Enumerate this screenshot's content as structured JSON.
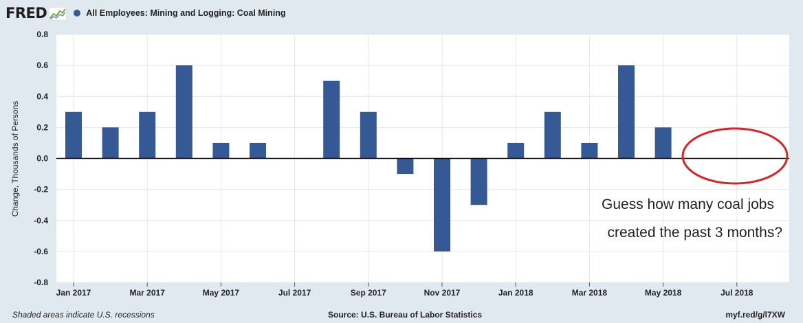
{
  "header": {
    "logo": "FRED",
    "series_title": "All Employees: Mining and Logging: Coal Mining"
  },
  "footer": {
    "note": "Shaded areas indicate U.S. recessions",
    "source": "Source: U.S. Bureau of Labor Statistics",
    "link": "myf.red/g/l7XW"
  },
  "annotation": {
    "line1": "Guess how many coal jobs",
    "line2": "created the past 3 months?"
  },
  "colors": {
    "bar": "#345995",
    "background": "#e1e9f0",
    "plot": "#ffffff",
    "ellipse": "#e02020"
  },
  "chart_data": {
    "type": "bar",
    "ylabel": "Change, Thousands of Persons",
    "ylim": [
      -0.8,
      0.8
    ],
    "yticks": [
      "0.8",
      "0.6",
      "0.4",
      "0.2",
      "0.0",
      "-0.2",
      "-0.4",
      "-0.6",
      "-0.8"
    ],
    "xticks": [
      "Jan 2017",
      "Mar 2017",
      "May 2017",
      "Jul 2017",
      "Sep 2017",
      "Nov 2017",
      "Jan 2018",
      "Mar 2018",
      "May 2018",
      "Jul 2018"
    ],
    "categories": [
      "2017-01",
      "2017-02",
      "2017-03",
      "2017-04",
      "2017-05",
      "2017-06",
      "2017-07",
      "2017-08",
      "2017-09",
      "2017-10",
      "2017-11",
      "2017-12",
      "2018-01",
      "2018-02",
      "2018-03",
      "2018-04",
      "2018-05"
    ],
    "values": [
      0.3,
      0.2,
      0.3,
      0.6,
      0.1,
      0.1,
      0.0,
      0.5,
      0.3,
      -0.1,
      -0.6,
      -0.3,
      0.1,
      0.3,
      0.1,
      0.6,
      0.2
    ],
    "grid": true,
    "legend": "top-left"
  }
}
